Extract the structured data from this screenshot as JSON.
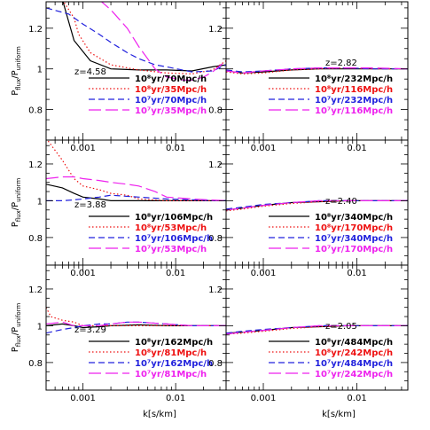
{
  "chart_data": {
    "type": "line",
    "grid": "3x2 panels sharing axes",
    "xscale": "log",
    "xlim": [
      0.0004,
      0.035
    ],
    "ylim": [
      0.65,
      1.33
    ],
    "xlabel": "k[s/km]",
    "ylabel_main": "P",
    "ylabel_sub_top": "flux",
    "ylabel_sub_bottom": "uniform",
    "x_ticks": [
      0.001,
      0.01
    ],
    "x_tick_labels": [
      "0.001",
      "0.01"
    ],
    "y_ticks": [
      0.8,
      1,
      1.2
    ],
    "y_tick_labels": [
      "0.8",
      "1",
      "1.2"
    ],
    "legend_placement": "lower-right",
    "series_styles": [
      {
        "color": "#000000",
        "dash": "solid"
      },
      {
        "color": "#ee1111",
        "dash": "dotted"
      },
      {
        "color": "#2222dd",
        "dash": "short-dash"
      },
      {
        "color": "#ee22ee",
        "dash": "long-dash"
      }
    ],
    "panels": [
      {
        "z_label": "z=4.58",
        "series": [
          {
            "name": "10⁸yr/70Mpc/h",
            "x": [
              0.0004,
              0.0006,
              0.0008,
              0.0012,
              0.002,
              0.004,
              0.008,
              0.015,
              0.025,
              0.035
            ],
            "y": [
              1.34,
              1.34,
              1.14,
              1.04,
              1.0,
              0.995,
              0.995,
              0.99,
              1.01,
              1.02
            ]
          },
          {
            "name": "10⁸yr/35Mpc/h",
            "x": [
              0.0006,
              0.0008,
              0.0009,
              0.0012,
              0.002,
              0.004,
              0.008,
              0.015,
              0.025,
              0.035
            ],
            "y": [
              1.34,
              1.25,
              1.17,
              1.08,
              1.02,
              0.995,
              0.98,
              0.975,
              0.995,
              1.04
            ]
          },
          {
            "name": "10⁷yr/70Mpc/h",
            "x": [
              0.0004,
              0.0007,
              0.001,
              0.0015,
              0.002,
              0.003,
              0.004,
              0.006,
              0.008,
              0.015,
              0.025,
              0.035
            ],
            "y": [
              1.3,
              1.27,
              1.22,
              1.17,
              1.13,
              1.08,
              1.05,
              1.02,
              1.01,
              0.985,
              0.99,
              1.02
            ]
          },
          {
            "name": "10⁷yr/35Mpc/h",
            "x": [
              0.0015,
              0.002,
              0.003,
              0.004,
              0.006,
              0.008,
              0.012,
              0.015,
              0.02,
              0.025,
              0.035
            ],
            "y": [
              1.34,
              1.29,
              1.2,
              1.11,
              1.0,
              0.96,
              0.945,
              0.945,
              0.96,
              0.985,
              1.04
            ]
          }
        ]
      },
      {
        "z_label": "z=2.82",
        "series": [
          {
            "name": "10⁸yr/232Mpc/h",
            "x": [
              0.0004,
              0.0006,
              0.001,
              0.002,
              0.004,
              0.008,
              0.015,
              0.035
            ],
            "y": [
              0.99,
              0.98,
              0.985,
              0.995,
              1.0,
              1.0,
              1.0,
              1.0
            ]
          },
          {
            "name": "10⁸yr/116Mpc/h",
            "x": [
              0.0004,
              0.0006,
              0.001,
              0.002,
              0.004,
              0.008,
              0.015,
              0.035
            ],
            "y": [
              0.985,
              0.975,
              0.98,
              0.995,
              1.0,
              1.005,
              1.0,
              1.0
            ]
          },
          {
            "name": "10⁷yr/232Mpc/h",
            "x": [
              0.0004,
              0.0006,
              0.001,
              0.002,
              0.004,
              0.008,
              0.015,
              0.035
            ],
            "y": [
              0.995,
              0.985,
              0.99,
              1.0,
              1.005,
              1.005,
              1.0,
              1.0
            ]
          },
          {
            "name": "10⁷yr/116Mpc/h",
            "x": [
              0.0004,
              0.0006,
              0.001,
              0.002,
              0.004,
              0.008,
              0.015,
              0.035
            ],
            "y": [
              0.99,
              0.98,
              0.99,
              1.0,
              1.005,
              1.005,
              1.005,
              1.0
            ]
          }
        ]
      },
      {
        "z_label": "z=3.88",
        "series": [
          {
            "name": "10⁸yr/106Mpc/h",
            "x": [
              0.0004,
              0.0006,
              0.0008,
              0.001,
              0.0015,
              0.002,
              0.004,
              0.008,
              0.015,
              0.035
            ],
            "y": [
              1.09,
              1.07,
              1.04,
              1.02,
              1.01,
              1.0,
              1.0,
              1.0,
              1.0,
              1.0
            ]
          },
          {
            "name": "10⁸yr/53Mpc/h",
            "x": [
              0.0004,
              0.0006,
              0.0008,
              0.001,
              0.0015,
              0.002,
              0.003,
              0.004,
              0.008,
              0.015,
              0.035
            ],
            "y": [
              1.34,
              1.22,
              1.12,
              1.08,
              1.06,
              1.04,
              1.03,
              1.01,
              1.0,
              1.0,
              1.0
            ]
          },
          {
            "name": "10⁷yr/106Mpc/h",
            "x": [
              0.0004,
              0.0006,
              0.0008,
              0.001,
              0.0015,
              0.002,
              0.004,
              0.008,
              0.015,
              0.035
            ],
            "y": [
              1.0,
              1.0,
              1.005,
              1.01,
              1.02,
              1.03,
              1.02,
              1.01,
              1.005,
              1.0
            ]
          },
          {
            "name": "10⁷yr/53Mpc/h",
            "x": [
              0.0004,
              0.0006,
              0.0008,
              0.001,
              0.0015,
              0.002,
              0.003,
              0.004,
              0.006,
              0.008,
              0.015,
              0.035
            ],
            "y": [
              1.12,
              1.13,
              1.13,
              1.12,
              1.11,
              1.1,
              1.09,
              1.08,
              1.05,
              1.02,
              1.01,
              1.0
            ]
          }
        ]
      },
      {
        "z_label": "z=2.40",
        "series": [
          {
            "name": "10⁸yr/340Mpc/h",
            "x": [
              0.0004,
              0.0006,
              0.001,
              0.002,
              0.004,
              0.008,
              0.015,
              0.035
            ],
            "y": [
              0.95,
              0.96,
              0.975,
              0.99,
              0.995,
              1.0,
              1.0,
              1.0
            ]
          },
          {
            "name": "10⁸yr/170Mpc/h",
            "x": [
              0.0004,
              0.0006,
              0.001,
              0.002,
              0.004,
              0.008,
              0.015,
              0.035
            ],
            "y": [
              0.945,
              0.955,
              0.97,
              0.985,
              0.995,
              1.0,
              1.0,
              1.0
            ]
          },
          {
            "name": "10⁷yr/340Mpc/h",
            "x": [
              0.0004,
              0.0006,
              0.001,
              0.002,
              0.004,
              0.008,
              0.015,
              0.035
            ],
            "y": [
              0.955,
              0.965,
              0.98,
              0.99,
              1.0,
              1.0,
              1.0,
              1.0
            ]
          },
          {
            "name": "10⁷yr/170Mpc/h",
            "x": [
              0.0004,
              0.0006,
              0.001,
              0.002,
              0.004,
              0.008,
              0.015,
              0.035
            ],
            "y": [
              0.95,
              0.96,
              0.975,
              0.99,
              1.0,
              1.0,
              1.0,
              1.0
            ]
          }
        ]
      },
      {
        "z_label": "z=3.29",
        "series": [
          {
            "name": "10⁸yr/162Mpc/h",
            "x": [
              0.0004,
              0.0006,
              0.0008,
              0.001,
              0.0015,
              0.002,
              0.004,
              0.008,
              0.015,
              0.035
            ],
            "y": [
              1.0,
              1.01,
              1.0,
              0.99,
              0.995,
              1.0,
              1.005,
              1.0,
              1.0,
              1.0
            ]
          },
          {
            "name": "10⁸yr/81Mpc/h",
            "x": [
              0.0004,
              0.00045,
              0.0006,
              0.0008,
              0.001,
              0.0015,
              0.002,
              0.004,
              0.008,
              0.015,
              0.035
            ],
            "y": [
              1.1,
              1.05,
              1.03,
              1.02,
              1.0,
              1.0,
              1.0,
              1.0,
              1.0,
              1.0,
              1.0
            ]
          },
          {
            "name": "10⁷yr/162Mpc/h",
            "x": [
              0.0004,
              0.0006,
              0.0008,
              0.001,
              0.0015,
              0.002,
              0.003,
              0.004,
              0.008,
              0.015,
              0.035
            ],
            "y": [
              0.96,
              0.98,
              0.99,
              1.0,
              1.01,
              1.01,
              1.02,
              1.02,
              1.01,
              1.0,
              1.0
            ]
          },
          {
            "name": "10⁷yr/81Mpc/h",
            "x": [
              0.0004,
              0.0006,
              0.0008,
              0.001,
              0.0015,
              0.002,
              0.003,
              0.004,
              0.008,
              0.015,
              0.035
            ],
            "y": [
              1.01,
              1.02,
              1.0,
              1.0,
              1.0,
              1.01,
              1.02,
              1.02,
              1.01,
              1.0,
              1.0
            ]
          }
        ]
      },
      {
        "z_label": "z=2.05",
        "series": [
          {
            "name": "10⁸yr/484Mpc/h",
            "x": [
              0.0004,
              0.0006,
              0.001,
              0.002,
              0.004,
              0.008,
              0.015,
              0.035
            ],
            "y": [
              0.96,
              0.965,
              0.975,
              0.99,
              0.995,
              1.0,
              1.0,
              1.0
            ]
          },
          {
            "name": "10⁸yr/242Mpc/h",
            "x": [
              0.0004,
              0.0006,
              0.001,
              0.002,
              0.004,
              0.008,
              0.015,
              0.035
            ],
            "y": [
              0.955,
              0.96,
              0.97,
              0.985,
              0.995,
              1.0,
              1.0,
              1.0
            ]
          },
          {
            "name": "10⁷yr/484Mpc/h",
            "x": [
              0.0004,
              0.0006,
              0.001,
              0.002,
              0.004,
              0.008,
              0.015,
              0.035
            ],
            "y": [
              0.96,
              0.97,
              0.98,
              0.99,
              1.0,
              1.0,
              1.0,
              1.0
            ]
          },
          {
            "name": "10⁷yr/242Mpc/h",
            "x": [
              0.0004,
              0.0006,
              0.001,
              0.002,
              0.004,
              0.008,
              0.015,
              0.035
            ],
            "y": [
              0.955,
              0.965,
              0.975,
              0.99,
              1.0,
              1.0,
              1.0,
              1.0
            ]
          }
        ]
      }
    ]
  }
}
